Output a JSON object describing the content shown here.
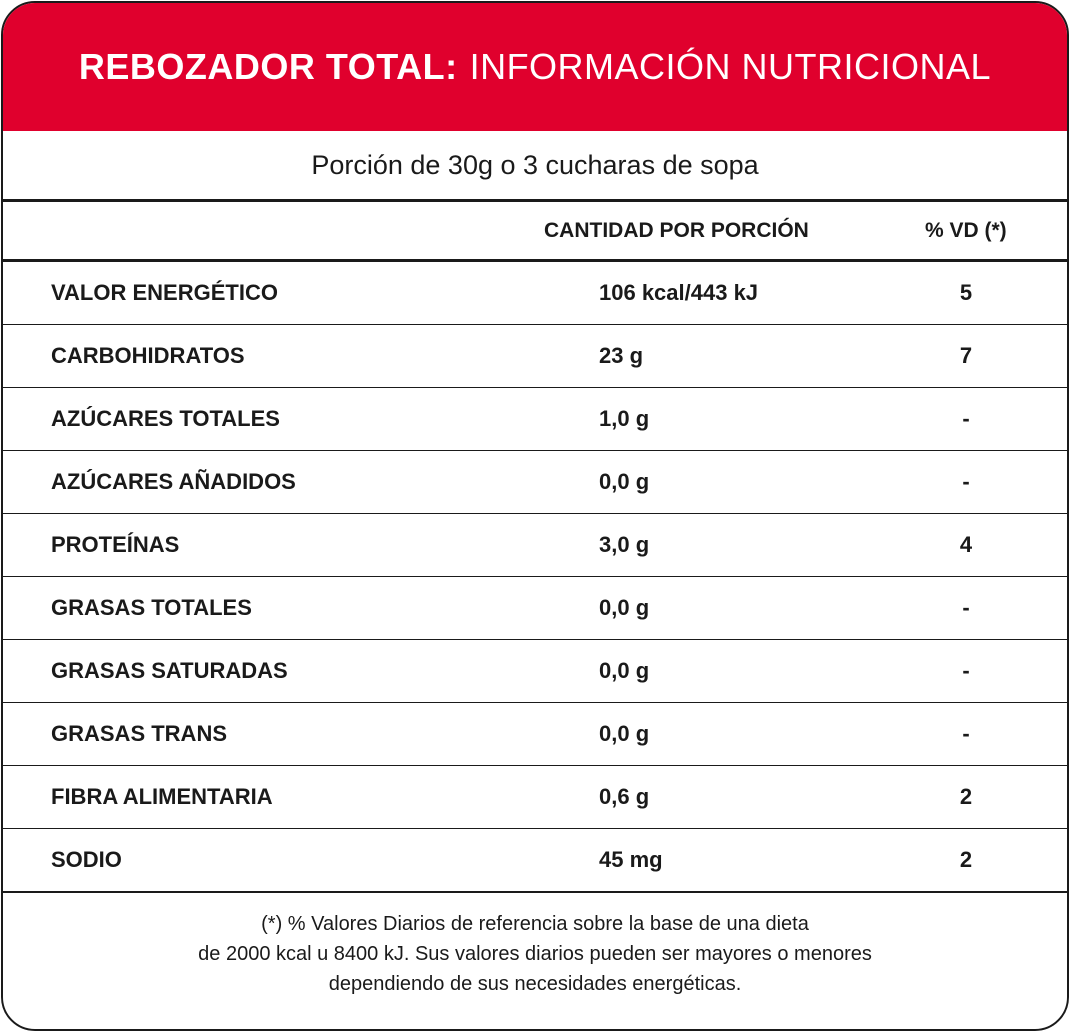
{
  "header": {
    "title_bold": "REBOZADOR TOTAL:",
    "title_light": "INFORMACIÓN NUTRICIONAL",
    "background_color": "#e0002d"
  },
  "portion": "Porción de 30g o 3 cucharas de sopa",
  "columns": {
    "amount": "CANTIDAD POR PORCIÓN",
    "vd": "% VD (*)"
  },
  "rows": [
    {
      "name": "VALOR ENERGÉTICO",
      "amount": "106 kcal/443 kJ",
      "vd": "5"
    },
    {
      "name": "CARBOHIDRATOS",
      "amount": "23 g",
      "vd": "7"
    },
    {
      "name": "AZÚCARES TOTALES",
      "amount": "1,0 g",
      "vd": "-"
    },
    {
      "name": "AZÚCARES AÑADIDOS",
      "amount": "0,0 g",
      "vd": "-"
    },
    {
      "name": "PROTEÍNAS",
      "amount": "3,0 g",
      "vd": "4"
    },
    {
      "name": "GRASAS TOTALES",
      "amount": "0,0 g",
      "vd": "-"
    },
    {
      "name": "GRASAS SATURADAS",
      "amount": "0,0 g",
      "vd": "-"
    },
    {
      "name": "GRASAS TRANS",
      "amount": "0,0 g",
      "vd": "-"
    },
    {
      "name": "FIBRA ALIMENTARIA",
      "amount": "0,6 g",
      "vd": "2"
    },
    {
      "name": "SODIO",
      "amount": "45 mg",
      "vd": "2"
    }
  ],
  "footnote": {
    "line1": "(*) % Valores Diarios de referencia sobre la base de una dieta",
    "line2": "de 2000 kcal u 8400 kJ. Sus valores diarios pueden ser mayores o menores",
    "line3": "dependiendo de sus necesidades energéticas."
  }
}
